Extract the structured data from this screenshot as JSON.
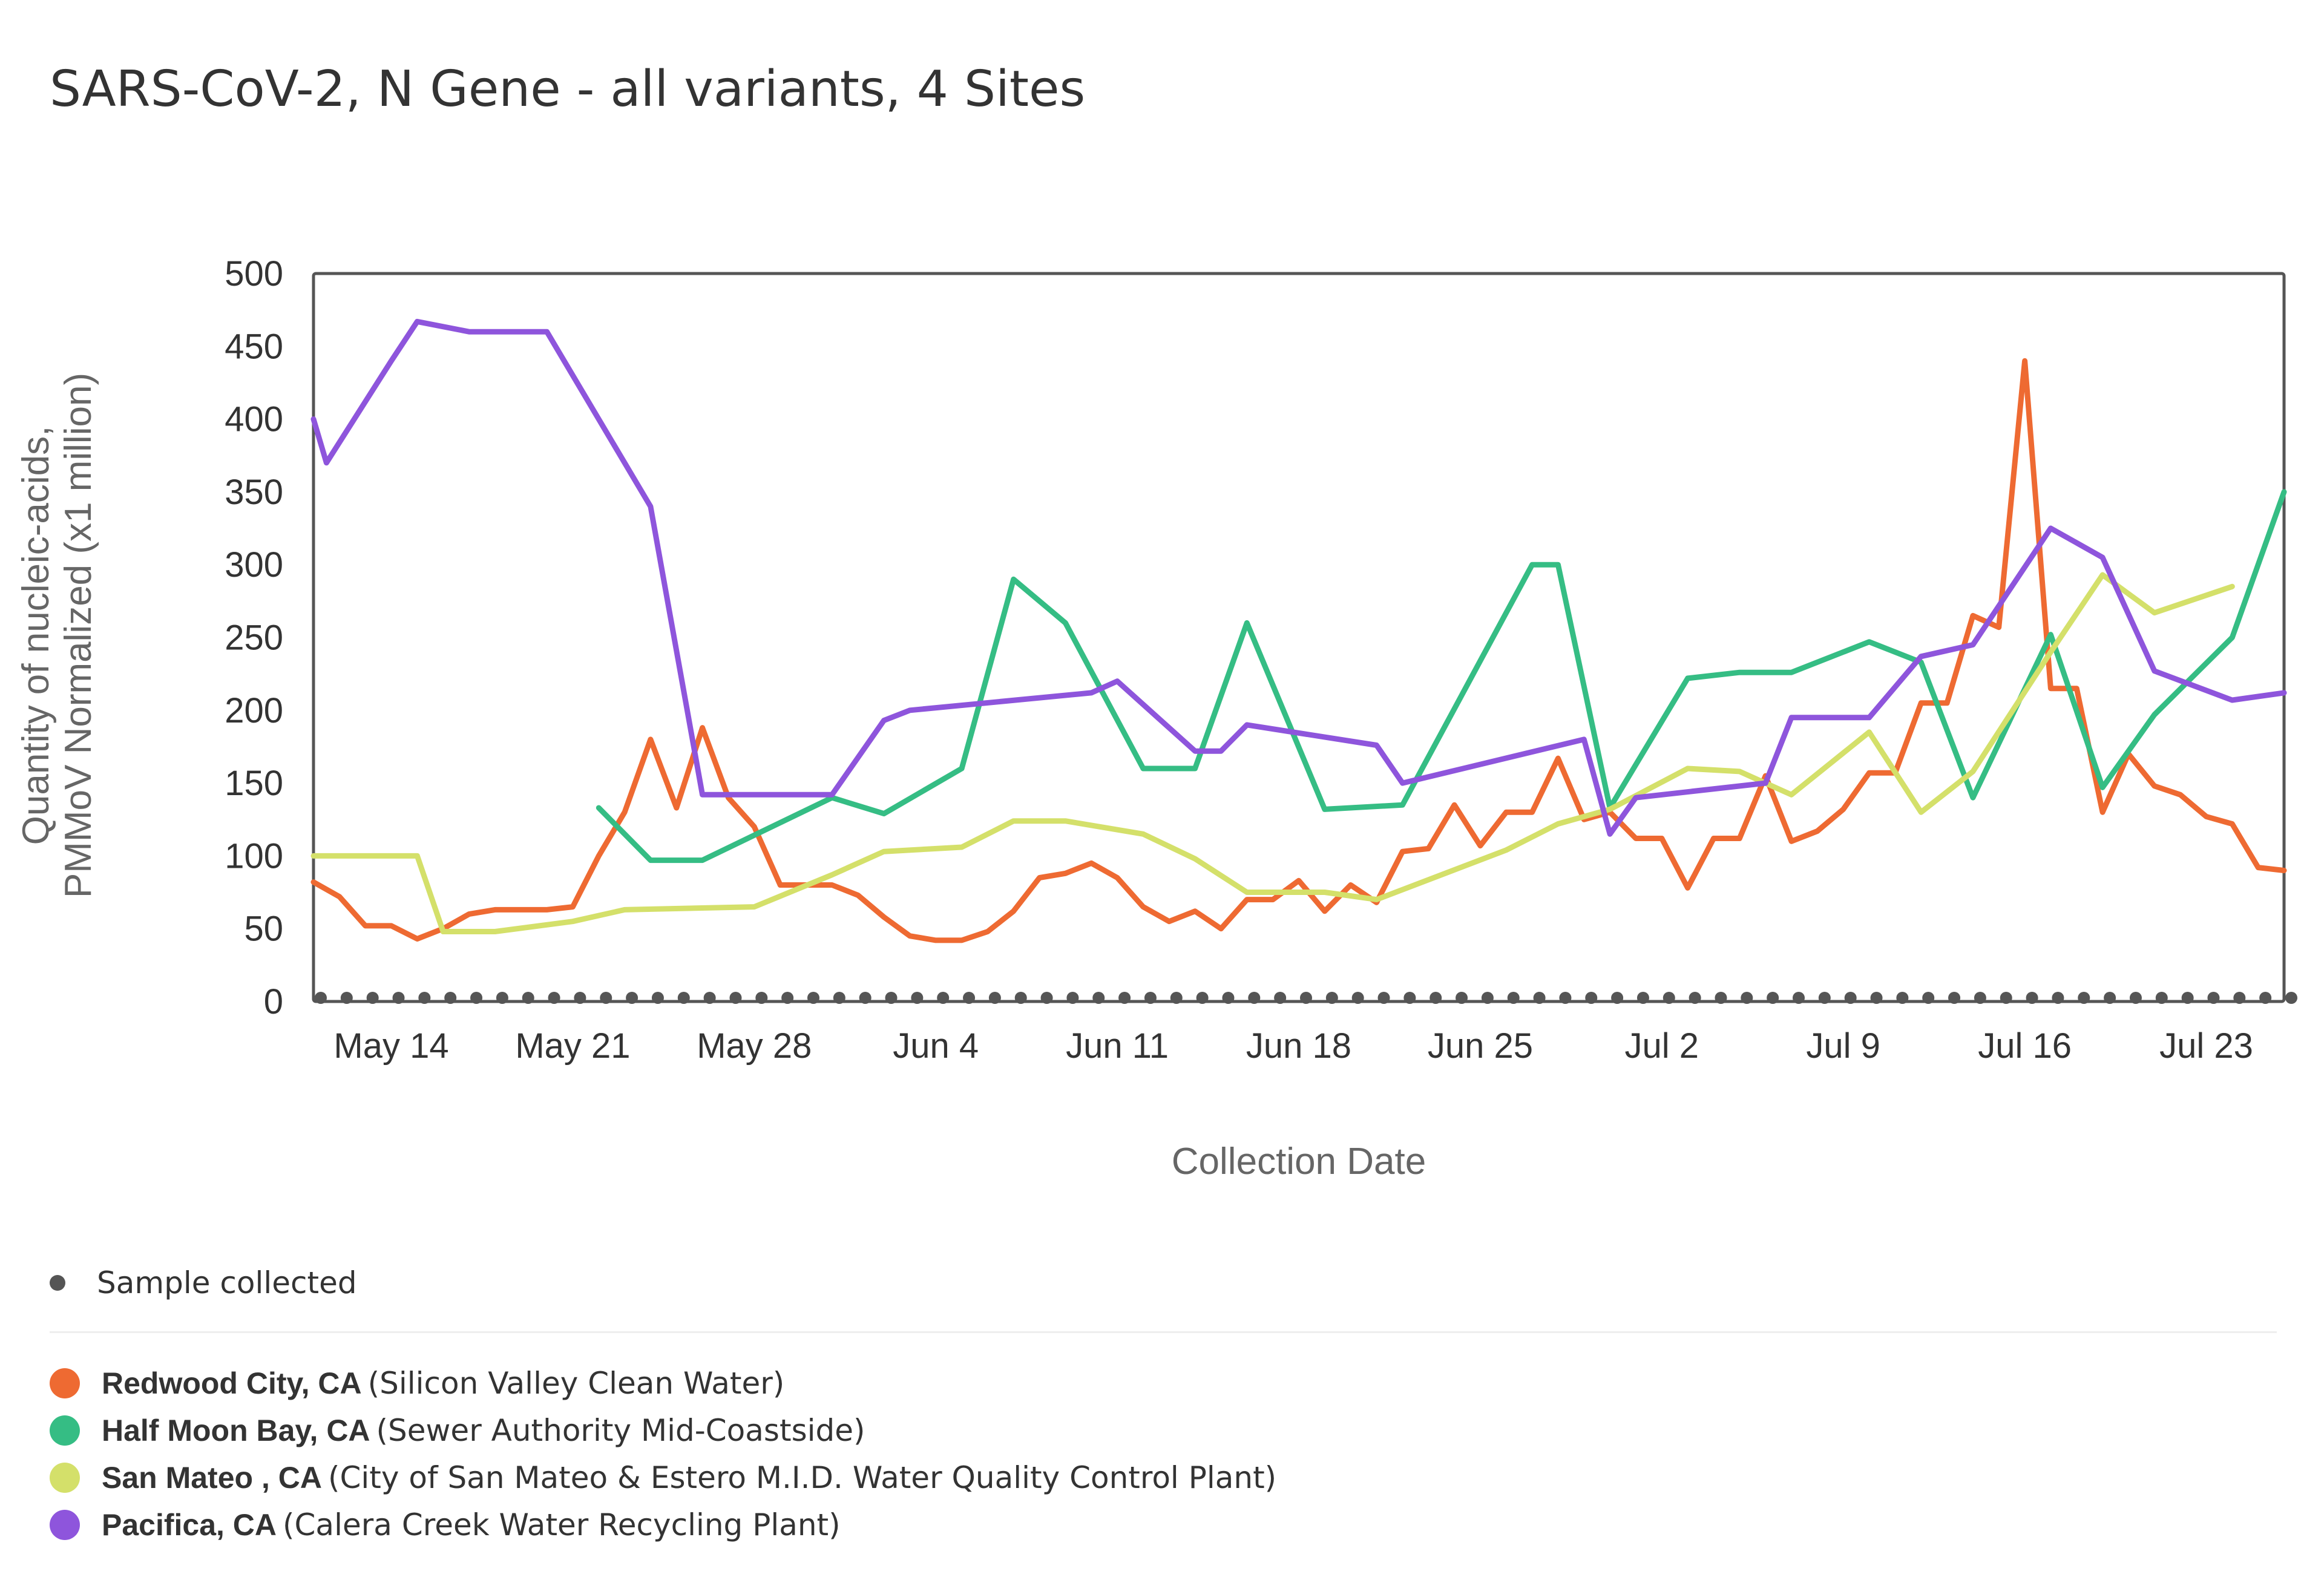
{
  "title": "SARS-CoV-2, N Gene - all variants, 4 Sites",
  "legend": {
    "sample_label": "Sample collected",
    "sample_color": "#555555",
    "sites": [
      {
        "name": "Redwood City, CA",
        "detail": "(Silicon Valley Clean Water)",
        "color": "#ee6a32"
      },
      {
        "name": "Half Moon Bay, CA",
        "detail": "(Sewer Authority Mid-Coastside)",
        "color": "#35bd84"
      },
      {
        "name": "San Mateo , CA",
        "detail": "(City of San Mateo & Estero M.I.D. Water Quality Control Plant)",
        "color": "#d4e06a"
      },
      {
        "name": "Pacifica, CA",
        "detail": "(Calera Creek Water Recycling Plant)",
        "color": "#8e55dc"
      }
    ]
  },
  "chart_data": {
    "type": "line",
    "title": "SARS-CoV-2, N Gene - all variants, 4 Sites",
    "xlabel": "Collection Date",
    "ylabel": [
      "Quantity of nucleic-acids,",
      "PMMoV Normalized (x1 million)"
    ],
    "xlim": [
      "2022-05-11",
      "2022-07-26"
    ],
    "ylim": [
      0,
      500
    ],
    "y_ticks": [
      0,
      50,
      100,
      150,
      200,
      250,
      300,
      350,
      400,
      450,
      500
    ],
    "x_ticks": [
      {
        "date": "2022-05-14",
        "label": "May 14"
      },
      {
        "date": "2022-05-21",
        "label": "May 21"
      },
      {
        "date": "2022-05-28",
        "label": "May 28"
      },
      {
        "date": "2022-06-04",
        "label": "Jun 4"
      },
      {
        "date": "2022-06-11",
        "label": "Jun 11"
      },
      {
        "date": "2022-06-18",
        "label": "Jun 18"
      },
      {
        "date": "2022-06-25",
        "label": "Jun 25"
      },
      {
        "date": "2022-07-02",
        "label": "Jul 2"
      },
      {
        "date": "2022-07-09",
        "label": "Jul 9"
      },
      {
        "date": "2022-07-16",
        "label": "Jul 16"
      },
      {
        "date": "2022-07-23",
        "label": "Jul 23"
      }
    ],
    "grid": false,
    "legend": "bottom",
    "sample_dates": [
      "2022-05-11",
      "2022-05-12",
      "2022-05-13",
      "2022-05-14",
      "2022-05-15",
      "2022-05-16",
      "2022-05-17",
      "2022-05-18",
      "2022-05-19",
      "2022-05-20",
      "2022-05-21",
      "2022-05-22",
      "2022-05-23",
      "2022-05-24",
      "2022-05-25",
      "2022-05-26",
      "2022-05-27",
      "2022-05-28",
      "2022-05-29",
      "2022-05-30",
      "2022-05-31",
      "2022-06-01",
      "2022-06-02",
      "2022-06-03",
      "2022-06-04",
      "2022-06-05",
      "2022-06-06",
      "2022-06-07",
      "2022-06-08",
      "2022-06-09",
      "2022-06-10",
      "2022-06-11",
      "2022-06-12",
      "2022-06-13",
      "2022-06-14",
      "2022-06-15",
      "2022-06-16",
      "2022-06-17",
      "2022-06-18",
      "2022-06-19",
      "2022-06-20",
      "2022-06-21",
      "2022-06-22",
      "2022-06-23",
      "2022-06-24",
      "2022-06-25",
      "2022-06-26",
      "2022-06-27",
      "2022-06-28",
      "2022-06-29",
      "2022-06-30",
      "2022-07-01",
      "2022-07-02",
      "2022-07-03",
      "2022-07-04",
      "2022-07-05",
      "2022-07-06",
      "2022-07-07",
      "2022-07-08",
      "2022-07-09",
      "2022-07-10",
      "2022-07-11",
      "2022-07-12",
      "2022-07-13",
      "2022-07-14",
      "2022-07-15",
      "2022-07-16",
      "2022-07-17",
      "2022-07-18",
      "2022-07-19",
      "2022-07-20",
      "2022-07-21",
      "2022-07-22",
      "2022-07-23",
      "2022-07-24",
      "2022-07-25",
      "2022-07-26"
    ],
    "series": [
      {
        "name": "Redwood City, CA",
        "color": "#ee6a32",
        "points": [
          [
            "2022-05-11",
            82
          ],
          [
            "2022-05-12",
            72
          ],
          [
            "2022-05-13",
            52
          ],
          [
            "2022-05-14",
            52
          ],
          [
            "2022-05-15",
            43
          ],
          [
            "2022-05-16",
            50
          ],
          [
            "2022-05-17",
            60
          ],
          [
            "2022-05-18",
            63
          ],
          [
            "2022-05-19",
            63
          ],
          [
            "2022-05-20",
            63
          ],
          [
            "2022-05-21",
            65
          ],
          [
            "2022-05-22",
            100
          ],
          [
            "2022-05-23",
            130
          ],
          [
            "2022-05-24",
            180
          ],
          [
            "2022-05-25",
            133
          ],
          [
            "2022-05-26",
            188
          ],
          [
            "2022-05-27",
            140
          ],
          [
            "2022-05-28",
            120
          ],
          [
            "2022-05-29",
            80
          ],
          [
            "2022-05-30",
            80
          ],
          [
            "2022-05-31",
            80
          ],
          [
            "2022-06-01",
            73
          ],
          [
            "2022-06-02",
            58
          ],
          [
            "2022-06-03",
            45
          ],
          [
            "2022-06-04",
            42
          ],
          [
            "2022-06-05",
            42
          ],
          [
            "2022-06-06",
            48
          ],
          [
            "2022-06-07",
            62
          ],
          [
            "2022-06-08",
            85
          ],
          [
            "2022-06-09",
            88
          ],
          [
            "2022-06-10",
            95
          ],
          [
            "2022-06-11",
            85
          ],
          [
            "2022-06-12",
            65
          ],
          [
            "2022-06-13",
            55
          ],
          [
            "2022-06-14",
            62
          ],
          [
            "2022-06-15",
            50
          ],
          [
            "2022-06-16",
            70
          ],
          [
            "2022-06-17",
            70
          ],
          [
            "2022-06-18",
            83
          ],
          [
            "2022-06-19",
            62
          ],
          [
            "2022-06-20",
            80
          ],
          [
            "2022-06-21",
            68
          ],
          [
            "2022-06-22",
            103
          ],
          [
            "2022-06-23",
            105
          ],
          [
            "2022-06-24",
            135
          ],
          [
            "2022-06-25",
            107
          ],
          [
            "2022-06-26",
            130
          ],
          [
            "2022-06-27",
            130
          ],
          [
            "2022-06-28",
            167
          ],
          [
            "2022-06-29",
            125
          ],
          [
            "2022-06-30",
            130
          ],
          [
            "2022-07-01",
            112
          ],
          [
            "2022-07-02",
            112
          ],
          [
            "2022-07-03",
            78
          ],
          [
            "2022-07-04",
            112
          ],
          [
            "2022-07-05",
            112
          ],
          [
            "2022-07-06",
            155
          ],
          [
            "2022-07-07",
            110
          ],
          [
            "2022-07-08",
            117
          ],
          [
            "2022-07-09",
            132
          ],
          [
            "2022-07-10",
            157
          ],
          [
            "2022-07-11",
            157
          ],
          [
            "2022-07-12",
            205
          ],
          [
            "2022-07-13",
            205
          ],
          [
            "2022-07-14",
            265
          ],
          [
            "2022-07-15",
            257
          ],
          [
            "2022-07-16",
            440
          ],
          [
            "2022-07-17",
            215
          ],
          [
            "2022-07-18",
            215
          ],
          [
            "2022-07-19",
            130
          ],
          [
            "2022-07-20",
            170
          ],
          [
            "2022-07-21",
            148
          ],
          [
            "2022-07-22",
            142
          ],
          [
            "2022-07-23",
            127
          ],
          [
            "2022-07-24",
            122
          ],
          [
            "2022-07-25",
            92
          ],
          [
            "2022-07-26",
            90
          ]
        ]
      },
      {
        "name": "Half Moon Bay, CA",
        "color": "#35bd84",
        "points": [
          [
            "2022-05-22",
            133
          ],
          [
            "2022-05-24",
            97
          ],
          [
            "2022-05-26",
            97
          ],
          [
            "2022-05-31",
            140
          ],
          [
            "2022-06-02",
            129
          ],
          [
            "2022-06-05",
            160
          ],
          [
            "2022-06-07",
            290
          ],
          [
            "2022-06-09",
            260
          ],
          [
            "2022-06-12",
            160
          ],
          [
            "2022-06-14",
            160
          ],
          [
            "2022-06-16",
            260
          ],
          [
            "2022-06-19",
            132
          ],
          [
            "2022-06-22",
            135
          ],
          [
            "2022-06-27",
            300
          ],
          [
            "2022-06-28",
            300
          ],
          [
            "2022-06-30",
            133
          ],
          [
            "2022-07-03",
            222
          ],
          [
            "2022-07-05",
            226
          ],
          [
            "2022-07-07",
            226
          ],
          [
            "2022-07-10",
            247
          ],
          [
            "2022-07-12",
            233
          ],
          [
            "2022-07-14",
            140
          ],
          [
            "2022-07-17",
            252
          ],
          [
            "2022-07-19",
            147
          ],
          [
            "2022-07-21",
            197
          ],
          [
            "2022-07-24",
            250
          ],
          [
            "2022-07-26",
            350
          ]
        ]
      },
      {
        "name": "San Mateo , CA",
        "color": "#d4e06a",
        "points": [
          [
            "2022-05-11",
            100
          ],
          [
            "2022-05-14",
            100
          ],
          [
            "2022-05-15",
            100
          ],
          [
            "2022-05-16",
            48
          ],
          [
            "2022-05-18",
            48
          ],
          [
            "2022-05-21",
            55
          ],
          [
            "2022-05-23",
            63
          ],
          [
            "2022-05-28",
            65
          ],
          [
            "2022-05-31",
            87
          ],
          [
            "2022-06-02",
            103
          ],
          [
            "2022-06-05",
            106
          ],
          [
            "2022-06-07",
            124
          ],
          [
            "2022-06-09",
            124
          ],
          [
            "2022-06-12",
            115
          ],
          [
            "2022-06-14",
            98
          ],
          [
            "2022-06-16",
            75
          ],
          [
            "2022-06-19",
            75
          ],
          [
            "2022-06-21",
            70
          ],
          [
            "2022-06-26",
            104
          ],
          [
            "2022-06-28",
            122
          ],
          [
            "2022-06-30",
            132
          ],
          [
            "2022-07-03",
            160
          ],
          [
            "2022-07-05",
            158
          ],
          [
            "2022-07-07",
            142
          ],
          [
            "2022-07-10",
            185
          ],
          [
            "2022-07-12",
            130
          ],
          [
            "2022-07-14",
            158
          ],
          [
            "2022-07-17",
            240
          ],
          [
            "2022-07-19",
            293
          ],
          [
            "2022-07-21",
            267
          ],
          [
            "2022-07-24",
            285
          ]
        ]
      },
      {
        "name": "Pacifica, CA",
        "color": "#8e55dc",
        "points": [
          [
            "2022-05-11",
            400
          ],
          [
            "2022-05-11T12",
            370
          ],
          [
            "2022-05-14",
            440
          ],
          [
            "2022-05-15",
            467
          ],
          [
            "2022-05-17",
            460
          ],
          [
            "2022-05-19",
            460
          ],
          [
            "2022-05-20",
            460
          ],
          [
            "2022-05-24",
            340
          ],
          [
            "2022-05-26",
            142
          ],
          [
            "2022-05-31",
            142
          ],
          [
            "2022-06-02",
            193
          ],
          [
            "2022-06-03",
            200
          ],
          [
            "2022-06-10",
            212
          ],
          [
            "2022-06-11",
            220
          ],
          [
            "2022-06-14",
            172
          ],
          [
            "2022-06-15",
            172
          ],
          [
            "2022-06-16",
            190
          ],
          [
            "2022-06-21",
            176
          ],
          [
            "2022-06-22",
            150
          ],
          [
            "2022-06-29",
            180
          ],
          [
            "2022-06-30",
            115
          ],
          [
            "2022-07-01",
            140
          ],
          [
            "2022-07-06",
            150
          ],
          [
            "2022-07-07",
            195
          ],
          [
            "2022-07-10",
            195
          ],
          [
            "2022-07-12",
            237
          ],
          [
            "2022-07-14",
            245
          ],
          [
            "2022-07-17",
            325
          ],
          [
            "2022-07-19",
            305
          ],
          [
            "2022-07-21",
            227
          ],
          [
            "2022-07-24",
            207
          ],
          [
            "2022-07-26",
            212
          ]
        ]
      }
    ]
  }
}
